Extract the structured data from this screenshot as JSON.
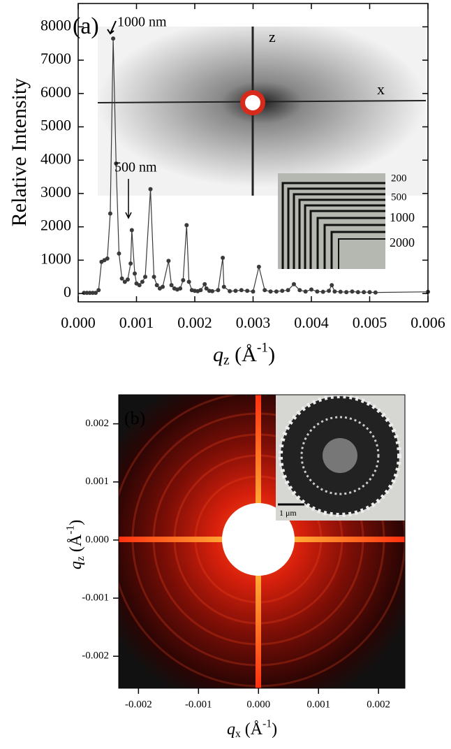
{
  "chart_data": [
    {
      "type": "line",
      "y_label": "Relative Intensity",
      "x_label": [
        "q",
        "z",
        " (Å",
        "-1",
        ")"
      ],
      "x": [
        0.0001,
        0.00015,
        0.0002,
        0.00025,
        0.0003,
        0.00035,
        0.0004,
        0.00045,
        0.0005,
        0.00055,
        0.0006,
        0.00065,
        0.0007,
        0.00075,
        0.0008,
        0.00085,
        0.0009,
        0.00092,
        0.00097,
        0.001,
        0.00105,
        0.0011,
        0.00115,
        0.00124,
        0.0013,
        0.00135,
        0.0014,
        0.00145,
        0.00155,
        0.0016,
        0.00165,
        0.0017,
        0.00175,
        0.0018,
        0.00186,
        0.0019,
        0.00195,
        0.002,
        0.00205,
        0.0021,
        0.00217,
        0.0022,
        0.00225,
        0.0023,
        0.0024,
        0.00248,
        0.0025,
        0.0026,
        0.0027,
        0.0028,
        0.0029,
        0.003,
        0.0031,
        0.0032,
        0.0033,
        0.0034,
        0.0035,
        0.0036,
        0.0037,
        0.0038,
        0.0039,
        0.004,
        0.0041,
        0.0042,
        0.0043,
        0.00435,
        0.0044,
        0.0045,
        0.0046,
        0.0047,
        0.0048,
        0.0049,
        0.005,
        0.0051,
        0.006
      ],
      "y": [
        20,
        20,
        20,
        20,
        20,
        100,
        950,
        1000,
        1050,
        2400,
        7650,
        3900,
        1200,
        450,
        350,
        420,
        900,
        1900,
        600,
        300,
        250,
        350,
        500,
        3130,
        500,
        250,
        150,
        200,
        980,
        250,
        150,
        120,
        150,
        400,
        2050,
        350,
        100,
        80,
        70,
        100,
        280,
        150,
        80,
        70,
        100,
        1070,
        200,
        70,
        80,
        100,
        80,
        60,
        800,
        100,
        60,
        60,
        80,
        100,
        280,
        100,
        60,
        120,
        60,
        50,
        80,
        250,
        60,
        50,
        40,
        60,
        40,
        40,
        40,
        30,
        50
      ],
      "color": "#3a3a3a",
      "xlim": [
        0,
        0.006
      ],
      "ylim": [
        -250,
        8700
      ],
      "xticks": [
        {
          "value": 0,
          "label": "0.000"
        },
        0.001,
        0.002,
        0.003,
        0.004,
        0.005,
        0.006
      ],
      "yticks": [
        0,
        1000,
        2000,
        3000,
        4000,
        5000,
        6000,
        7000,
        8000
      ],
      "annotations": [
        "(a)",
        "1000 nm",
        "500 nm",
        "z",
        "x",
        "200",
        "500",
        "1000",
        "2000"
      ]
    },
    {
      "type": "image",
      "y_label": [
        "q",
        "z",
        " (Å",
        "-1",
        ")"
      ],
      "x_label": [
        "q",
        "x",
        " (Å",
        "-1",
        ")"
      ],
      "xlim": [
        -0.00233,
        0.00244
      ],
      "ylim": [
        -0.00255,
        0.0025
      ],
      "xticks": [
        -0.002,
        -0.001,
        {
          "value": 0,
          "label": "0.000"
        },
        0.001,
        0.002
      ],
      "yticks": [
        -0.002,
        -0.001,
        {
          "value": 0,
          "label": "0.000"
        },
        0.001,
        0.002
      ],
      "annotations": [
        "(b)",
        "1 μm"
      ]
    }
  ]
}
